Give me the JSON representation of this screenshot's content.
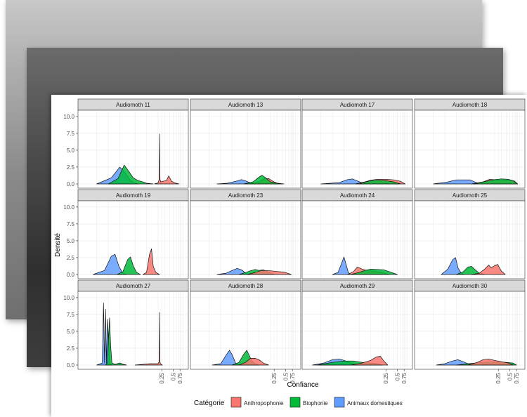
{
  "chart_data": {
    "type": "area",
    "xlabel": "Confiance",
    "ylabel": "Densité",
    "ylim": [
      0,
      10
    ],
    "y_ticks": [
      "0.0",
      "2.5",
      "5.0",
      "7.5",
      "10.0"
    ],
    "x_ticks": [
      "0.25",
      "0.5",
      "0.75"
    ],
    "grid": true,
    "legend": {
      "title": "Catégorie",
      "position": "bottom",
      "entries": [
        {
          "name": "Anthropophonie",
          "color": "#f8766d"
        },
        {
          "name": "Biophonie",
          "color": "#00ba38"
        },
        {
          "name": "Animaux domestiques",
          "color": "#619cff"
        }
      ]
    },
    "panels": [
      {
        "title": "Audiomoth 11",
        "curves": [
          {
            "series": "Animaux domestiques",
            "x": [
              0.005,
              0.012,
              0.02,
              0.028,
              0.036,
              0.045,
              0.06
            ],
            "y": [
              0,
              0.9,
              2.5,
              1.6,
              0.7,
              0.2,
              0
            ]
          },
          {
            "series": "Biophonie",
            "x": [
              0.01,
              0.018,
              0.026,
              0.034,
              0.045,
              0.06,
              0.08,
              0.1,
              0.15
            ],
            "y": [
              0,
              0.8,
              2.8,
              1.9,
              0.9,
              0.5,
              0.3,
              0.1,
              0
            ]
          },
          {
            "series": "Anthropophonie",
            "x": [
              0.16,
              0.2,
              0.215,
              0.22,
              0.225,
              0.235,
              0.27,
              0.33,
              0.38,
              0.45,
              0.55,
              0.7
            ],
            "y": [
              0,
              0.15,
              0.7,
              7.4,
              0.7,
              0.3,
              0.4,
              0.5,
              1.2,
              0.4,
              0.15,
              0
            ]
          }
        ]
      },
      {
        "title": "Audiomoth 13",
        "curves": [
          {
            "series": "Animaux domestiques",
            "x": [
              0.008,
              0.015,
              0.025,
              0.035,
              0.045,
              0.06,
              0.08
            ],
            "y": [
              0,
              0.1,
              0.4,
              0.65,
              0.45,
              0.15,
              0
            ]
          },
          {
            "series": "Anthropophonie",
            "x": [
              0.06,
              0.1,
              0.14,
              0.18,
              0.23,
              0.3,
              0.4
            ],
            "y": [
              0,
              0.3,
              0.8,
              0.8,
              0.4,
              0.1,
              0
            ]
          },
          {
            "series": "Biophonie",
            "x": [
              0.04,
              0.07,
              0.1,
              0.12,
              0.15,
              0.2,
              0.3,
              0.45
            ],
            "y": [
              0,
              0.3,
              1.0,
              1.3,
              0.9,
              0.3,
              0.1,
              0
            ]
          }
        ]
      },
      {
        "title": "Audiomoth 17",
        "curves": [
          {
            "series": "Animaux domestiques",
            "x": [
              0.005,
              0.015,
              0.025,
              0.033,
              0.045,
              0.06,
              0.08
            ],
            "y": [
              0,
              0.2,
              0.65,
              0.75,
              0.45,
              0.15,
              0
            ]
          },
          {
            "series": "Anthropophonie",
            "x": [
              0.04,
              0.07,
              0.1,
              0.15,
              0.25,
              0.4,
              0.6,
              0.8
            ],
            "y": [
              0,
              0.3,
              0.55,
              0.7,
              0.7,
              0.6,
              0.4,
              0
            ]
          },
          {
            "series": "Biophonie",
            "x": [
              0.05,
              0.08,
              0.12,
              0.18,
              0.28,
              0.4,
              0.6
            ],
            "y": [
              0,
              0.35,
              0.55,
              0.55,
              0.45,
              0.3,
              0
            ]
          }
        ]
      },
      {
        "title": "Audiomoth 18",
        "curves": [
          {
            "series": "Animaux domestiques",
            "x": [
              0.005,
              0.012,
              0.02,
              0.03,
              0.045,
              0.06,
              0.08
            ],
            "y": [
              0,
              0.3,
              0.6,
              0.6,
              0.6,
              0.3,
              0
            ]
          },
          {
            "series": "Anthropophonie",
            "x": [
              0.05,
              0.1,
              0.15,
              0.22,
              0.3,
              0.45,
              0.65,
              0.8
            ],
            "y": [
              0,
              0.3,
              0.7,
              0.6,
              0.5,
              0.55,
              0.45,
              0
            ]
          },
          {
            "series": "Biophonie",
            "x": [
              0.06,
              0.12,
              0.2,
              0.3,
              0.45,
              0.6,
              0.8
            ],
            "y": [
              0,
              0.4,
              0.65,
              0.75,
              0.7,
              0.5,
              0
            ]
          }
        ]
      },
      {
        "title": "Audiomoth 19",
        "curves": [
          {
            "series": "Animaux domestiques",
            "x": [
              0.004,
              0.008,
              0.012,
              0.015,
              0.019,
              0.024,
              0.03
            ],
            "y": [
              0,
              0.6,
              2.7,
              3.0,
              1.2,
              0.2,
              0
            ]
          },
          {
            "series": "Biophonie",
            "x": [
              0.017,
              0.024,
              0.032,
              0.038,
              0.045,
              0.055,
              0.07
            ],
            "y": [
              0,
              0.4,
              2.2,
              2.6,
              1.3,
              0.3,
              0
            ]
          },
          {
            "series": "Anthropophonie",
            "x": [
              0.08,
              0.1,
              0.12,
              0.135,
              0.15,
              0.175,
              0.22
            ],
            "y": [
              0,
              0.3,
              3.0,
              3.8,
              1.2,
              0.3,
              0
            ]
          }
        ]
      },
      {
        "title": "Audiomoth 23",
        "curves": [
          {
            "series": "Animaux domestiques",
            "x": [
              0.008,
              0.014,
              0.02,
              0.027,
              0.035,
              0.045,
              0.06
            ],
            "y": [
              0,
              0.2,
              0.6,
              0.9,
              0.7,
              0.2,
              0
            ]
          },
          {
            "series": "Biophonie",
            "x": [
              0.03,
              0.045,
              0.06,
              0.08,
              0.1,
              0.13,
              0.18,
              0.25
            ],
            "y": [
              0,
              0.3,
              0.55,
              0.75,
              0.6,
              0.7,
              0.35,
              0
            ]
          },
          {
            "series": "Anthropophonie",
            "x": [
              0.05,
              0.08,
              0.12,
              0.2,
              0.3,
              0.45,
              0.7
            ],
            "y": [
              0,
              0.3,
              0.6,
              0.55,
              0.45,
              0.35,
              0
            ]
          }
        ]
      },
      {
        "title": "Audiomoth 24",
        "curves": [
          {
            "series": "Animaux domestiques",
            "x": [
              0.01,
              0.014,
              0.017,
              0.02,
              0.022,
              0.026,
              0.03
            ],
            "y": [
              0,
              0.3,
              1.5,
              2.6,
              1.8,
              0.3,
              0
            ]
          },
          {
            "series": "Anthropophonie",
            "x": [
              0.025,
              0.035,
              0.045,
              0.06,
              0.08,
              0.12,
              0.2,
              0.3
            ],
            "y": [
              0,
              0.4,
              1.1,
              0.8,
              0.6,
              0.5,
              0.3,
              0
            ]
          },
          {
            "series": "Biophonie",
            "x": [
              0.03,
              0.05,
              0.07,
              0.1,
              0.15,
              0.22,
              0.35,
              0.5
            ],
            "y": [
              0,
              0.3,
              0.6,
              0.8,
              0.75,
              0.7,
              0.3,
              0
            ]
          }
        ]
      },
      {
        "title": "Audiomoth 25",
        "curves": [
          {
            "series": "Animaux domestiques",
            "x": [
              0.008,
              0.012,
              0.016,
              0.019,
              0.022,
              0.026,
              0.032
            ],
            "y": [
              0,
              0.8,
              2.2,
              2.5,
              1.0,
              0.3,
              0
            ]
          },
          {
            "series": "Biophonie",
            "x": [
              0.02,
              0.03,
              0.04,
              0.05,
              0.065,
              0.08,
              0.11
            ],
            "y": [
              0,
              0.4,
              1.1,
              1.2,
              0.6,
              0.2,
              0
            ]
          },
          {
            "series": "Anthropophonie",
            "x": [
              0.05,
              0.08,
              0.11,
              0.14,
              0.16,
              0.2,
              0.24,
              0.3,
              0.38
            ],
            "y": [
              0,
              0.2,
              0.8,
              1.4,
              1.0,
              1.3,
              1.5,
              0.5,
              0
            ]
          }
        ]
      },
      {
        "title": "Audiomoth 27",
        "curves": [
          {
            "series": "Animaux domestiques",
            "x": [
              0.005,
              0.007,
              0.0075,
              0.008,
              0.0085,
              0.009,
              0.0095,
              0.011,
              0.013
            ],
            "y": [
              0,
              0.3,
              9.2,
              0.3,
              8.3,
              0.2,
              6.8,
              0.2,
              0
            ]
          },
          {
            "series": "Biophonie",
            "x": [
              0.0085,
              0.0095,
              0.01,
              0.0108,
              0.0115,
              0.0125,
              0.015,
              0.02,
              0.025,
              0.03
            ],
            "y": [
              0,
              0.3,
              3.0,
              7.0,
              3.0,
              0.3,
              0.1,
              0.3,
              0.1,
              0
            ]
          },
          {
            "series": "Anthropophonie",
            "x": [
              0.05,
              0.08,
              0.12,
              0.2,
              0.215,
              0.22,
              0.225,
              0.23,
              0.26
            ],
            "y": [
              0,
              0.1,
              0.2,
              0.2,
              0.5,
              7.8,
              0.5,
              0.2,
              0
            ]
          }
        ]
      },
      {
        "title": "Audiomoth 28",
        "curves": [
          {
            "series": "Animaux domestiques",
            "x": [
              0.006,
              0.01,
              0.014,
              0.017,
              0.02,
              0.025,
              0.032
            ],
            "y": [
              0,
              0.2,
              1.5,
              2.2,
              1.5,
              0.2,
              0
            ]
          },
          {
            "series": "Biophonie",
            "x": [
              0.02,
              0.03,
              0.04,
              0.048,
              0.055,
              0.065,
              0.08,
              0.1
            ],
            "y": [
              0,
              0.4,
              1.6,
              2.2,
              1.5,
              0.6,
              0.2,
              0
            ]
          },
          {
            "series": "Anthropophonie",
            "x": [
              0.03,
              0.045,
              0.06,
              0.08,
              0.1,
              0.13,
              0.18
            ],
            "y": [
              0,
              0.4,
              1.0,
              1.0,
              0.8,
              0.3,
              0
            ]
          }
        ]
      },
      {
        "title": "Audiomoth 29",
        "curves": [
          {
            "series": "Animaux domestiques",
            "x": [
              0.003,
              0.006,
              0.01,
              0.015,
              0.02,
              0.03,
              0.045
            ],
            "y": [
              0,
              0.3,
              0.8,
              0.9,
              0.7,
              0.3,
              0
            ]
          },
          {
            "series": "Biophonie",
            "x": [
              0.004,
              0.01,
              0.02,
              0.035,
              0.06,
              0.1,
              0.15,
              0.2
            ],
            "y": [
              0,
              0.4,
              0.6,
              0.6,
              0.4,
              0.3,
              0.2,
              0
            ]
          },
          {
            "series": "Anthropophonie",
            "x": [
              0.03,
              0.06,
              0.1,
              0.14,
              0.18,
              0.22,
              0.28
            ],
            "y": [
              0,
              0.3,
              0.7,
              1.2,
              1.3,
              0.6,
              0
            ]
          }
        ]
      },
      {
        "title": "Audiomoth 30",
        "curves": [
          {
            "series": "Animaux domestiques",
            "x": [
              0.006,
              0.01,
              0.016,
              0.022,
              0.03,
              0.04,
              0.06
            ],
            "y": [
              0,
              0.2,
              0.6,
              0.8,
              0.5,
              0.2,
              0
            ]
          },
          {
            "series": "Biophonie",
            "x": [
              0.02,
              0.04,
              0.08,
              0.15,
              0.25,
              0.4,
              0.6,
              0.75
            ],
            "y": [
              0,
              0.2,
              0.35,
              0.45,
              0.5,
              0.4,
              0.3,
              0
            ]
          },
          {
            "series": "Anthropophonie",
            "x": [
              0.04,
              0.07,
              0.1,
              0.14,
              0.2,
              0.3,
              0.45,
              0.6
            ],
            "y": [
              0,
              0.4,
              0.8,
              0.9,
              0.7,
              0.5,
              0.3,
              0
            ]
          }
        ]
      }
    ]
  }
}
